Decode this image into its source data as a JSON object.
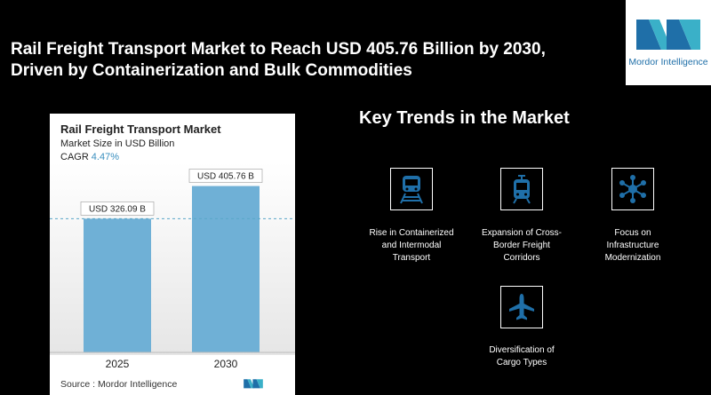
{
  "headline": {
    "line1": "Rail Freight Transport Market to Reach USD 405.76 Billion by 2030,",
    "line2": "Driven by Containerization and Bulk Commodities"
  },
  "logo": {
    "text": "Mordor Intelligence"
  },
  "card": {
    "title": "Rail Freight Transport Market",
    "subtitle": "Market Size in USD Billion",
    "cagr_label": "CAGR",
    "cagr_value": "4.47%",
    "source": "Source :  Mordor Intelligence"
  },
  "chart_data": {
    "type": "bar",
    "title": "Rail Freight Transport Market",
    "ylabel": "Market Size in USD Billion",
    "categories": [
      "2025",
      "2030"
    ],
    "values": [
      326.09,
      405.76
    ],
    "data_labels": [
      "USD 326.09 B",
      "USD 405.76 B"
    ],
    "ylim": [
      0,
      420
    ],
    "bar_color": "#6fb0d6",
    "reference_line_at": 326.09
  },
  "trends": {
    "title": "Key Trends in the Market",
    "items": [
      {
        "icon": "train-tracks-icon",
        "line1": "Rise in Containerized",
        "line2": "and Intermodal",
        "line3": "Transport"
      },
      {
        "icon": "tram-icon",
        "line1": "Expansion of Cross-",
        "line2": "Border Freight",
        "line3": "Corridors"
      },
      {
        "icon": "network-hub-icon",
        "line1": "Focus on",
        "line2": "Infrastructure",
        "line3": "Modernization"
      },
      {
        "icon": "airplane-icon",
        "line1": "Diversification of",
        "line2": "Cargo Types",
        "line3": ""
      }
    ]
  },
  "colors": {
    "accent": "#1f6fa8",
    "bar": "#6fb0d6",
    "cagr": "#3a8fbf"
  }
}
